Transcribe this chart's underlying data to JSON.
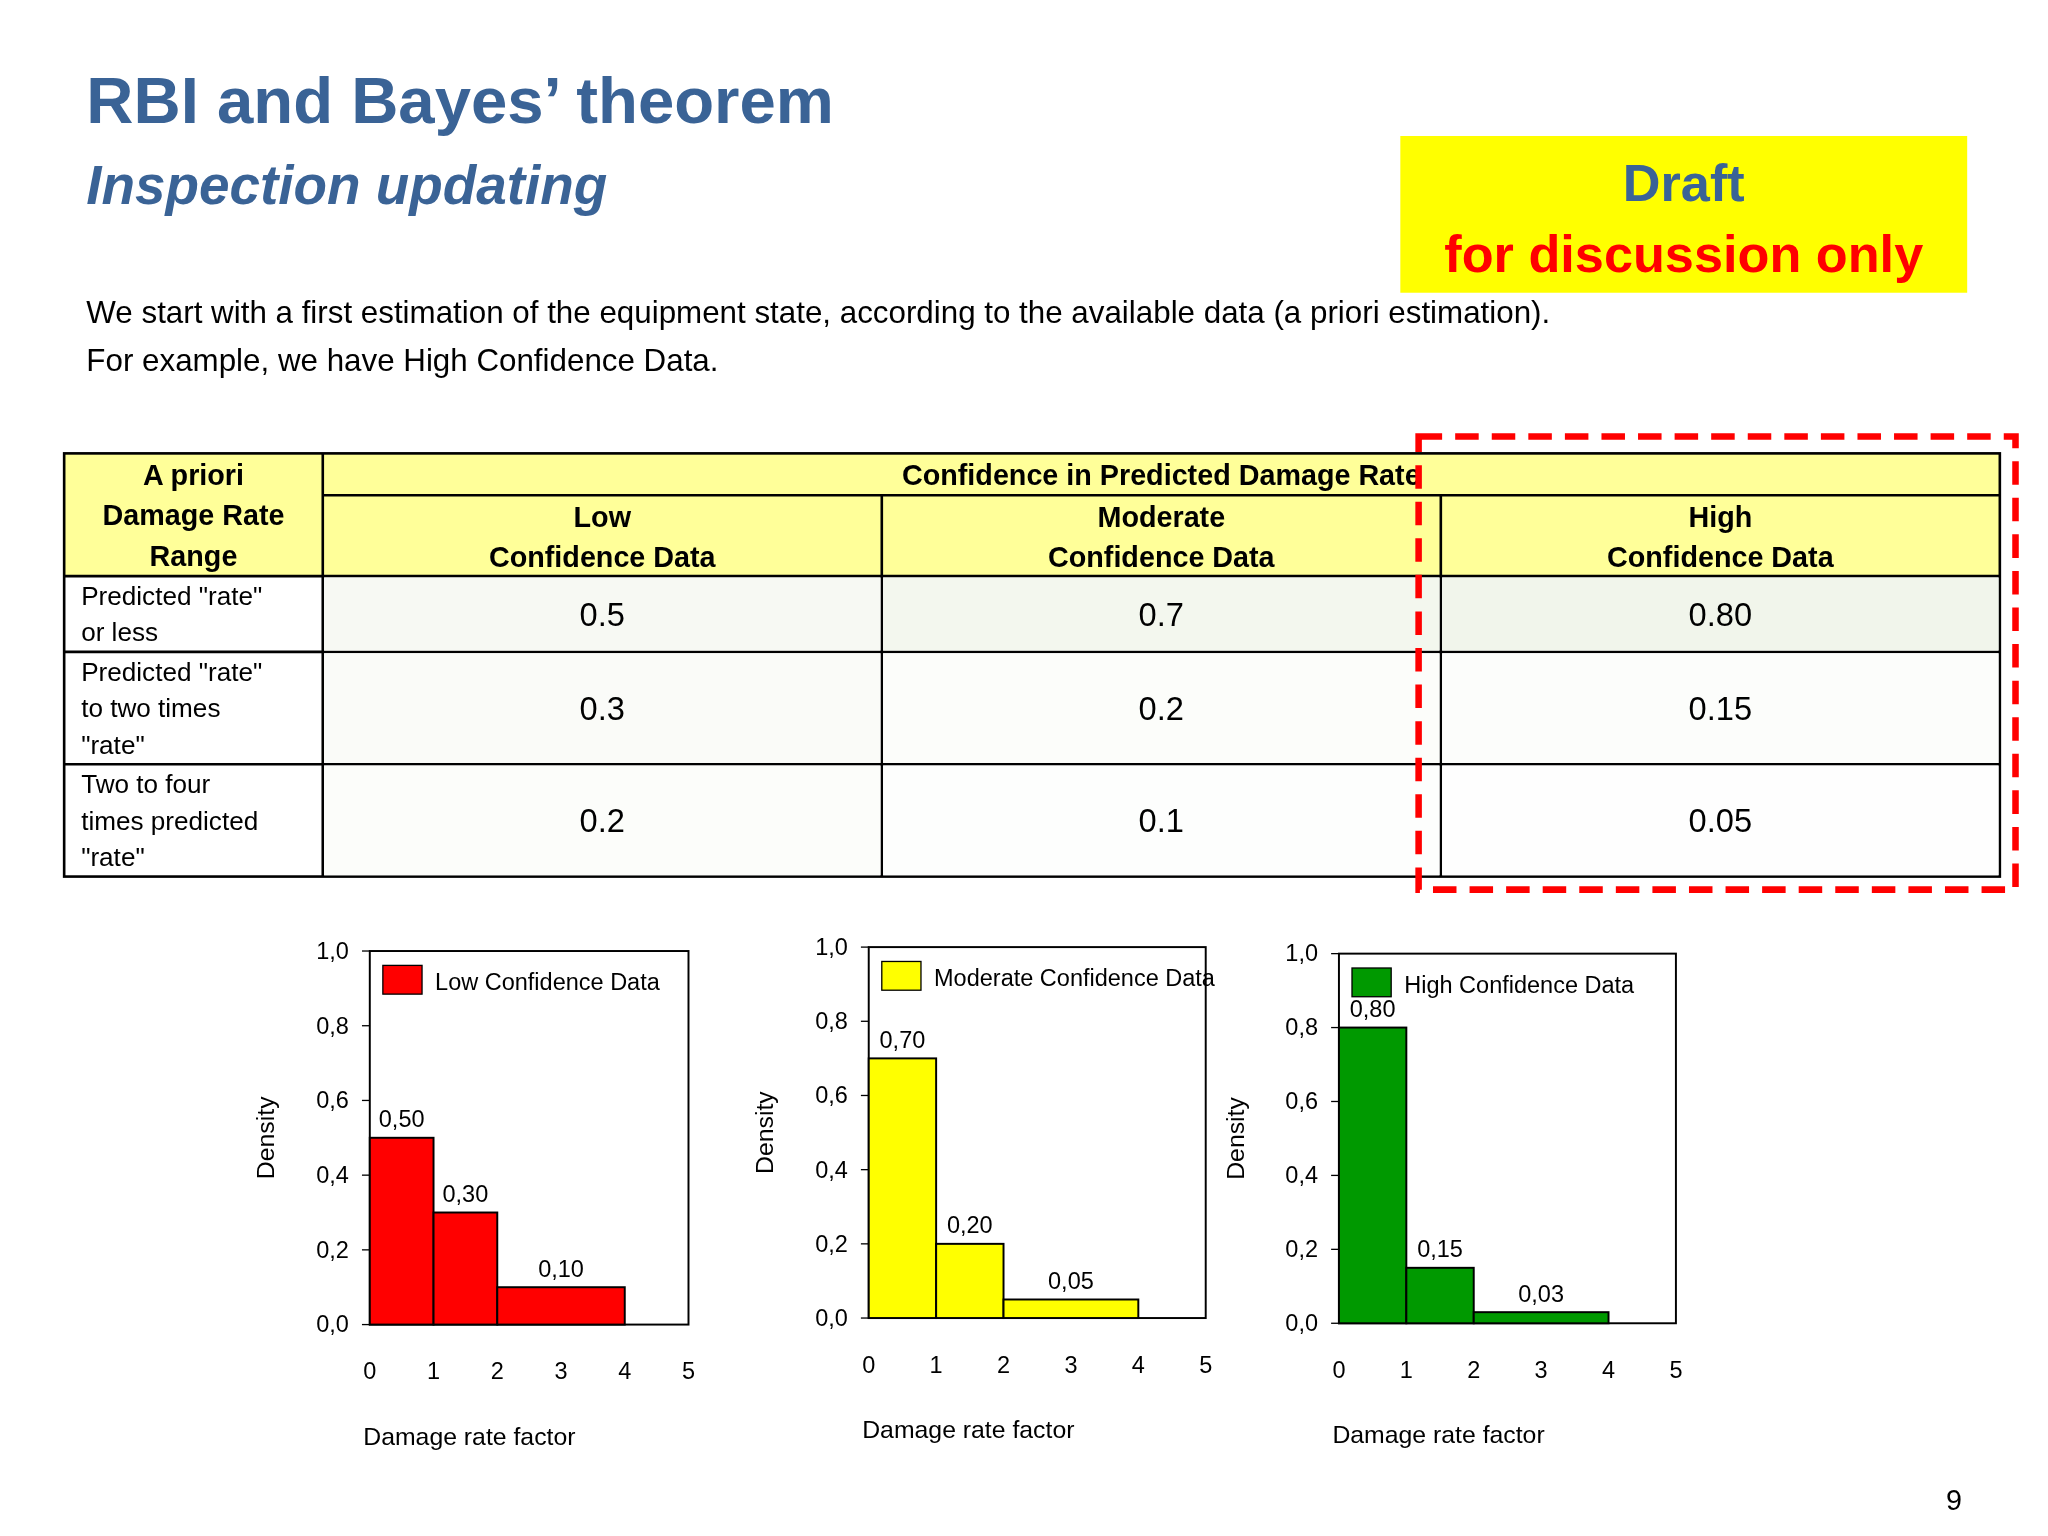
{
  "chart_data": [
    {
      "type": "other",
      "title": "RBI and Bayes’ theorem",
      "subtitle": "Inspection updating",
      "annotations": [
        "Draft",
        "for discussion only",
        "We start with a first estimation of the equipment state, according to the available data (a priori estimation).",
        "For example, we have  High Confidence Data.",
        "9"
      ]
    },
    {
      "type": "heatmap",
      "xlabel": "Confidence in Predicted Damage Rate",
      "ylabel": "A priori Damage Rate Range",
      "categories": [
        "Low Confidence Data",
        "Moderate Confidence Data",
        "High Confidence Data"
      ],
      "y_categories": [
        "Predicted \"rate\" or less",
        "Predicted \"rate\" to two times \"rate\"",
        "Two to four times predicted \"rate\""
      ],
      "cells": [
        [
          0.5,
          0.7,
          0.8
        ],
        [
          0.3,
          0.2,
          0.15
        ],
        [
          0.2,
          0.1,
          0.05
        ]
      ],
      "cell_labels": [
        [
          "0.5",
          "0.7",
          "0.80"
        ],
        [
          "0.3",
          "0.2",
          "0.15"
        ],
        [
          "0.2",
          "0.1",
          "0.05"
        ]
      ]
    },
    {
      "type": "histogram",
      "xlabel": "Damage rate factor",
      "ylabel": "Density",
      "bins": [
        0,
        1,
        2,
        4
      ],
      "xlim": [
        0,
        5
      ],
      "xticks": [
        0,
        1,
        2,
        3,
        4,
        5
      ],
      "ylim": [
        0,
        1
      ],
      "yticks": [
        {
          "value": 0,
          "label": "0,0"
        },
        {
          "value": 0.2,
          "label": "0,2"
        },
        {
          "value": 0.4,
          "label": "0,4"
        },
        {
          "value": 0.6,
          "label": "0,6"
        },
        {
          "value": 0.8,
          "label": "0,8"
        },
        {
          "value": 1,
          "label": "1,0"
        }
      ],
      "legend": "top left",
      "series": [
        {
          "name": "Low Confidence Data",
          "color": "#ff0000",
          "values": [
            0.5,
            0.3,
            0.1
          ],
          "value_labels": [
            "0,50",
            "0,30",
            "0,10"
          ]
        }
      ]
    },
    {
      "type": "histogram",
      "xlabel": "Damage rate factor",
      "ylabel": "Density",
      "bins": [
        0,
        1,
        2,
        4
      ],
      "xlim": [
        0,
        5
      ],
      "xticks": [
        0,
        1,
        2,
        3,
        4,
        5
      ],
      "ylim": [
        0,
        1
      ],
      "yticks": [
        {
          "value": 0,
          "label": "0,0"
        },
        {
          "value": 0.2,
          "label": "0,2"
        },
        {
          "value": 0.4,
          "label": "0,4"
        },
        {
          "value": 0.6,
          "label": "0,6"
        },
        {
          "value": 0.8,
          "label": "0,8"
        },
        {
          "value": 1,
          "label": "1,0"
        }
      ],
      "legend": "top left",
      "series": [
        {
          "name": "Moderate Confidence Data",
          "color": "#ffff00",
          "values": [
            0.7,
            0.2,
            0.05
          ],
          "value_labels": [
            "0,70",
            "0,20",
            "0,05"
          ]
        }
      ]
    },
    {
      "type": "histogram",
      "xlabel": "Damage rate factor",
      "ylabel": "Density",
      "bins": [
        0,
        1,
        2,
        4
      ],
      "xlim": [
        0,
        5
      ],
      "xticks": [
        0,
        1,
        2,
        3,
        4,
        5
      ],
      "ylim": [
        0,
        1
      ],
      "yticks": [
        {
          "value": 0,
          "label": "0,0"
        },
        {
          "value": 0.2,
          "label": "0,2"
        },
        {
          "value": 0.4,
          "label": "0,4"
        },
        {
          "value": 0.6,
          "label": "0,6"
        },
        {
          "value": 0.8,
          "label": "0,8"
        },
        {
          "value": 1,
          "label": "1,0"
        }
      ],
      "legend": "top left",
      "series": [
        {
          "name": "High Confidence Data",
          "color": "#009900",
          "values": [
            0.8,
            0.15,
            0.03
          ],
          "value_labels": [
            "0,80",
            "0,15",
            "0,03"
          ]
        }
      ]
    }
  ]
}
